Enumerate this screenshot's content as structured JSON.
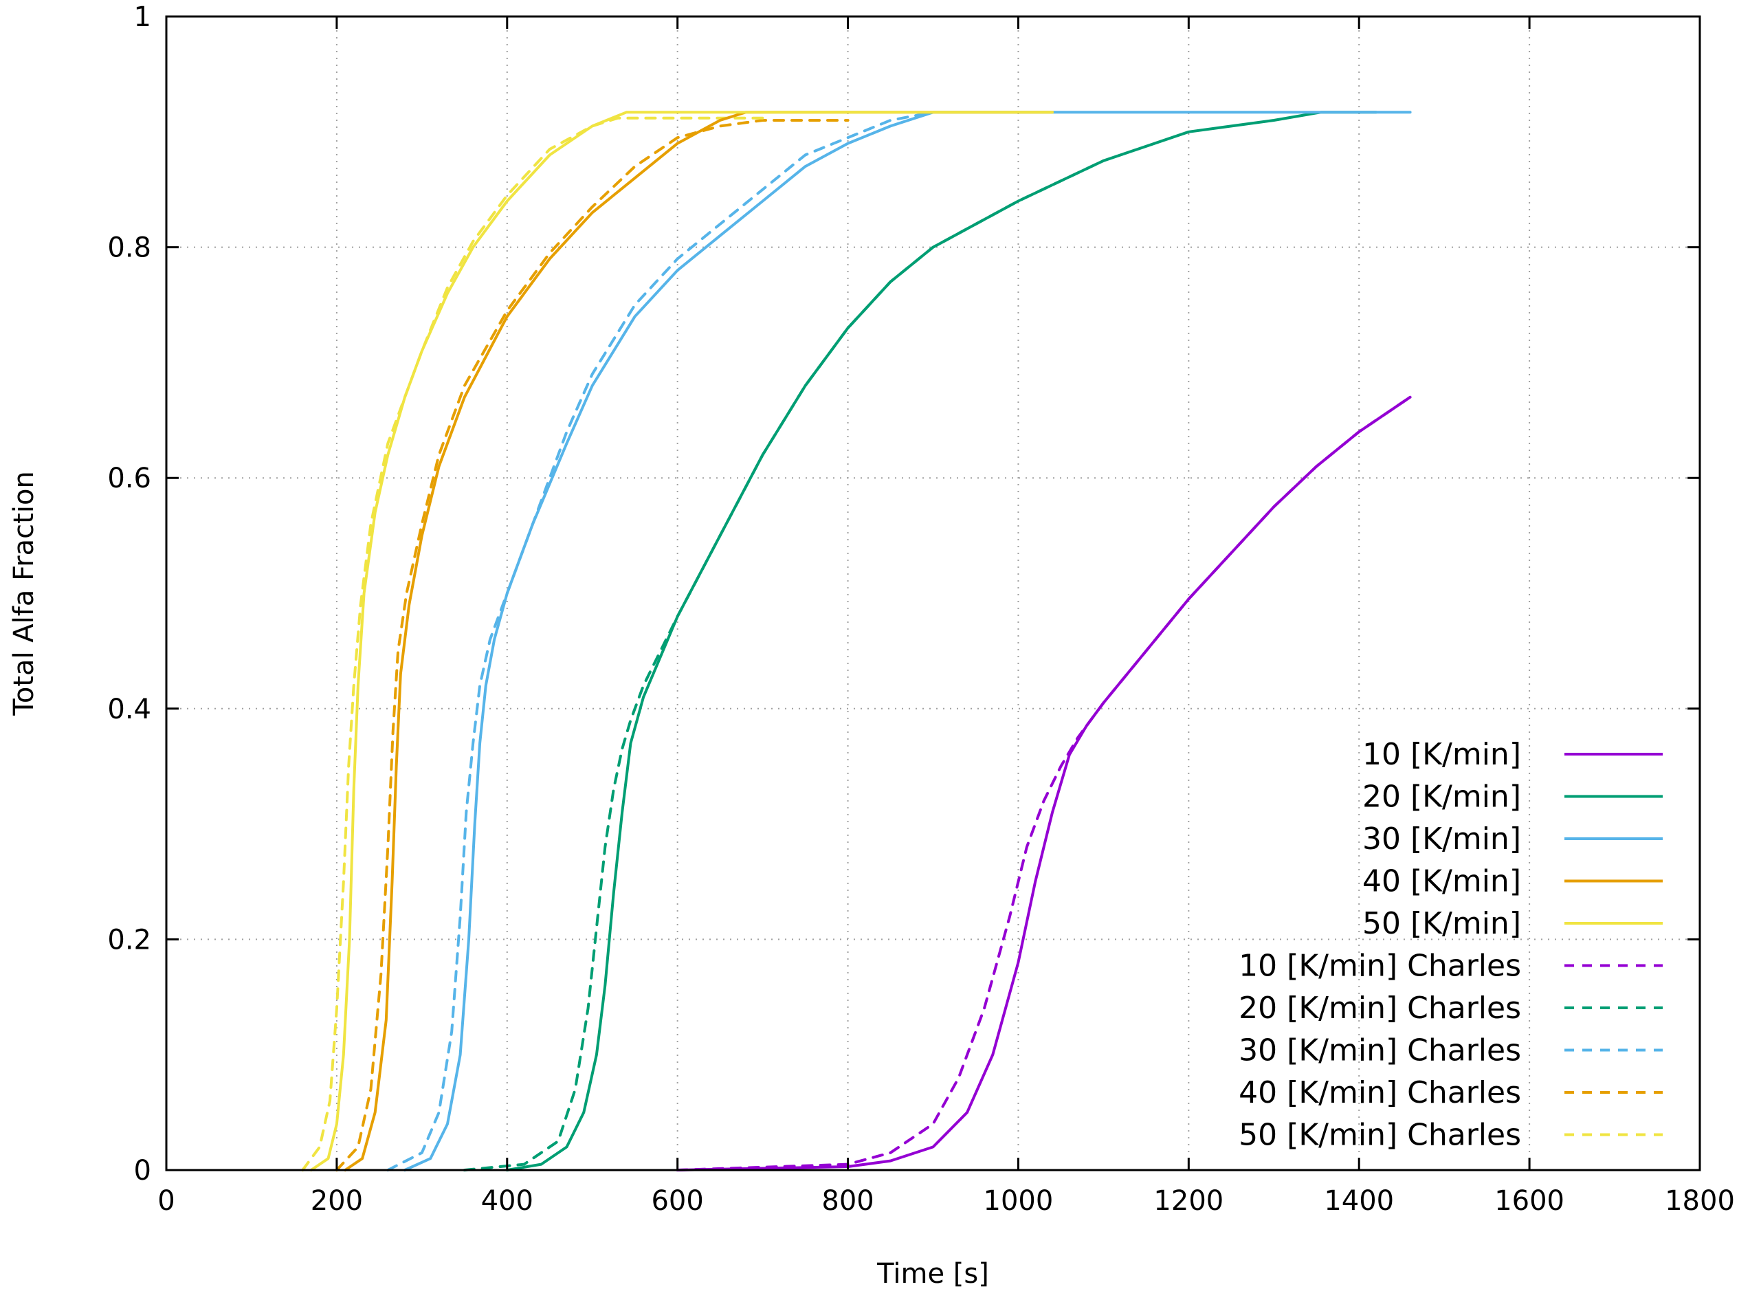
{
  "chart_data": {
    "type": "line",
    "title": "",
    "xlabel": "Time [s]",
    "ylabel": "Total Alfa Fraction",
    "xlim": [
      0,
      1800
    ],
    "ylim": [
      0,
      1
    ],
    "xticks": [
      0,
      200,
      400,
      600,
      800,
      1000,
      1200,
      1400,
      1600,
      1800
    ],
    "yticks": [
      0,
      0.2,
      0.4,
      0.6,
      0.8,
      1
    ],
    "ytick_labels": [
      "0",
      "0.2",
      "0.4",
      "0.6",
      "0.8",
      "1"
    ],
    "grid": true,
    "legend_position": "bottom-right",
    "series": [
      {
        "name": "10 [K/min]",
        "color": "#9400d3",
        "dash": "solid",
        "x": [
          600,
          800,
          850,
          900,
          940,
          970,
          1000,
          1020,
          1040,
          1060,
          1080,
          1100,
          1150,
          1200,
          1250,
          1300,
          1350,
          1400,
          1460
        ],
        "y": [
          0,
          0.003,
          0.008,
          0.02,
          0.05,
          0.1,
          0.18,
          0.25,
          0.31,
          0.36,
          0.385,
          0.405,
          0.45,
          0.495,
          0.535,
          0.575,
          0.61,
          0.64,
          0.67
        ]
      },
      {
        "name": "20 [K/min]",
        "color": "#009e73",
        "dash": "solid",
        "x": [
          400,
          440,
          470,
          490,
          505,
          515,
          525,
          535,
          545,
          560,
          600,
          650,
          700,
          750,
          800,
          850,
          900,
          1000,
          1100,
          1200,
          1300,
          1355,
          1420
        ],
        "y": [
          0,
          0.005,
          0.02,
          0.05,
          0.1,
          0.16,
          0.24,
          0.31,
          0.37,
          0.41,
          0.48,
          0.55,
          0.62,
          0.68,
          0.73,
          0.77,
          0.8,
          0.84,
          0.875,
          0.9,
          0.91,
          0.917,
          0.917
        ]
      },
      {
        "name": "30 [K/min]",
        "color": "#56b4e9",
        "dash": "solid",
        "x": [
          280,
          310,
          330,
          345,
          355,
          362,
          368,
          375,
          385,
          400,
          430,
          470,
          500,
          550,
          600,
          650,
          700,
          750,
          800,
          850,
          900,
          1000,
          1200,
          1460
        ],
        "y": [
          0,
          0.01,
          0.04,
          0.1,
          0.2,
          0.3,
          0.37,
          0.42,
          0.46,
          0.5,
          0.56,
          0.63,
          0.68,
          0.74,
          0.78,
          0.81,
          0.84,
          0.87,
          0.89,
          0.905,
          0.917,
          0.917,
          0.917,
          0.917
        ]
      },
      {
        "name": "40 [K/min]",
        "color": "#e69f00",
        "dash": "solid",
        "x": [
          210,
          230,
          245,
          258,
          265,
          270,
          275,
          285,
          300,
          320,
          350,
          400,
          450,
          500,
          550,
          600,
          650,
          680,
          800,
          1040
        ],
        "y": [
          0,
          0.01,
          0.05,
          0.13,
          0.25,
          0.35,
          0.43,
          0.49,
          0.55,
          0.61,
          0.67,
          0.74,
          0.79,
          0.83,
          0.86,
          0.89,
          0.91,
          0.917,
          0.917,
          0.917
        ]
      },
      {
        "name": "50 [K/min]",
        "color": "#f0e442",
        "dash": "solid",
        "x": [
          170,
          190,
          200,
          208,
          215,
          220,
          225,
          232,
          245,
          260,
          280,
          300,
          330,
          360,
          400,
          450,
          500,
          540,
          700,
          1040
        ],
        "y": [
          0,
          0.01,
          0.04,
          0.1,
          0.2,
          0.33,
          0.42,
          0.5,
          0.57,
          0.62,
          0.67,
          0.71,
          0.76,
          0.8,
          0.84,
          0.88,
          0.905,
          0.917,
          0.917,
          0.917
        ]
      },
      {
        "name": "10 [K/min] Charles",
        "color": "#9400d3",
        "dash": "dashed",
        "x": [
          600,
          800,
          850,
          900,
          930,
          960,
          990,
          1010,
          1030,
          1050,
          1070,
          1100,
          1150,
          1200,
          1250,
          1300,
          1350,
          1400,
          1460
        ],
        "y": [
          0,
          0.005,
          0.015,
          0.04,
          0.08,
          0.14,
          0.22,
          0.28,
          0.32,
          0.35,
          0.375,
          0.405,
          0.45,
          0.495,
          0.535,
          0.575,
          0.61,
          0.64,
          0.67
        ]
      },
      {
        "name": "20 [K/min] Charles",
        "color": "#009e73",
        "dash": "dashed",
        "x": [
          350,
          420,
          460,
          480,
          495,
          505,
          515,
          525,
          535,
          545,
          560,
          600,
          650,
          700,
          750,
          800,
          850,
          900,
          1000,
          1100
        ],
        "y": [
          0,
          0.005,
          0.025,
          0.07,
          0.14,
          0.21,
          0.28,
          0.33,
          0.365,
          0.39,
          0.42,
          0.48,
          0.55,
          0.62,
          0.68,
          0.73,
          0.77,
          0.8,
          0.84,
          0.875
        ]
      },
      {
        "name": "30 [K/min] Charles",
        "color": "#56b4e9",
        "dash": "dashed",
        "x": [
          260,
          300,
          320,
          335,
          345,
          352,
          360,
          368,
          380,
          400,
          430,
          470,
          500,
          550,
          600,
          650,
          700,
          750,
          800,
          850,
          900
        ],
        "y": [
          0,
          0.015,
          0.05,
          0.12,
          0.22,
          0.31,
          0.37,
          0.42,
          0.46,
          0.5,
          0.56,
          0.64,
          0.69,
          0.75,
          0.79,
          0.82,
          0.85,
          0.88,
          0.895,
          0.91,
          0.917
        ]
      },
      {
        "name": "40 [K/min] Charles",
        "color": "#e69f00",
        "dash": "dashed",
        "x": [
          200,
          225,
          240,
          252,
          260,
          266,
          272,
          282,
          300,
          320,
          350,
          400,
          450,
          500,
          550,
          600,
          650,
          700,
          800
        ],
        "y": [
          0,
          0.02,
          0.07,
          0.17,
          0.28,
          0.38,
          0.45,
          0.5,
          0.56,
          0.62,
          0.68,
          0.745,
          0.795,
          0.835,
          0.87,
          0.895,
          0.905,
          0.91,
          0.91
        ]
      },
      {
        "name": "50 [K/min] Charles",
        "color": "#f0e442",
        "dash": "dashed",
        "x": [
          160,
          180,
          192,
          200,
          208,
          214,
          220,
          228,
          240,
          260,
          280,
          300,
          330,
          360,
          400,
          450,
          500,
          530,
          600,
          700
        ],
        "y": [
          0,
          0.02,
          0.06,
          0.14,
          0.25,
          0.35,
          0.42,
          0.49,
          0.56,
          0.63,
          0.67,
          0.71,
          0.765,
          0.805,
          0.845,
          0.885,
          0.905,
          0.912,
          0.912,
          0.912
        ]
      }
    ]
  }
}
